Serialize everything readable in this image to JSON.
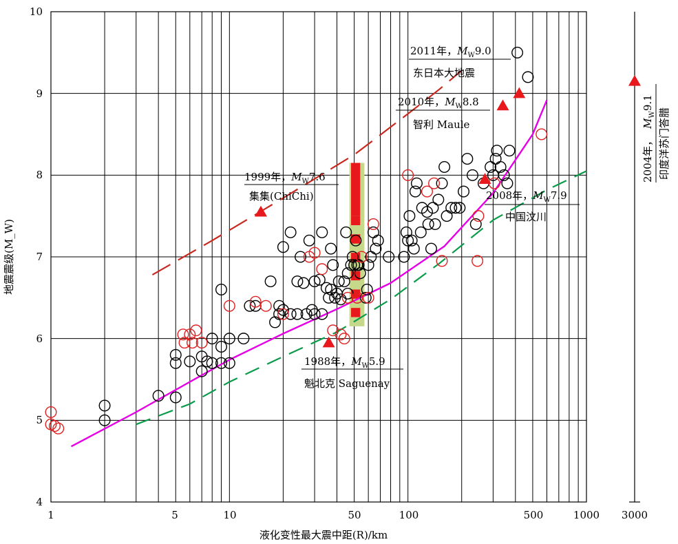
{
  "chart_data": {
    "type": "scatter",
    "xscale": "log",
    "xlim": [
      1,
      1000
    ],
    "ylim": [
      4,
      10
    ],
    "xlabel": "液化变性最大震中距(R)/km",
    "ylabel": "地震震级(M_W)",
    "x_ticks": [
      "1",
      "5",
      "10",
      "50",
      "100",
      "500",
      "1000"
    ],
    "y_ticks": [
      "4",
      "5",
      "6",
      "7",
      "8",
      "9",
      "10"
    ],
    "colors": {
      "black_points": "#000000",
      "red_points": "#e02020",
      "triangles": "#e8191c",
      "magenta_curve": "#e600e6",
      "green_dash": "#0a9b4a",
      "red_dash": "#c8281e",
      "band_fill": "#c6d98b",
      "band_red": "#e8191c"
    },
    "black_points": [
      [
        2,
        5.0
      ],
      [
        2,
        5.18
      ],
      [
        4,
        5.3
      ],
      [
        5,
        5.28
      ],
      [
        5,
        5.7
      ],
      [
        5,
        5.8
      ],
      [
        6,
        5.72
      ],
      [
        7,
        5.6
      ],
      [
        7,
        5.78
      ],
      [
        7.5,
        5.72
      ],
      [
        8,
        5.7
      ],
      [
        8,
        6.0
      ],
      [
        9,
        5.9
      ],
      [
        9,
        5.7
      ],
      [
        9,
        6.6
      ],
      [
        10,
        5.7
      ],
      [
        10,
        6.0
      ],
      [
        12,
        6.0
      ],
      [
        13,
        6.4
      ],
      [
        14,
        6.4
      ],
      [
        17,
        6.7
      ],
      [
        18,
        6.2
      ],
      [
        19,
        6.3
      ],
      [
        19,
        6.4
      ],
      [
        20,
        6.35
      ],
      [
        20,
        7.12
      ],
      [
        22,
        6.3
      ],
      [
        22,
        7.3
      ],
      [
        24,
        6.3
      ],
      [
        24,
        6.7
      ],
      [
        25,
        7.0
      ],
      [
        26,
        6.68
      ],
      [
        27,
        6.3
      ],
      [
        28,
        7.2
      ],
      [
        29,
        6.35
      ],
      [
        30,
        6.7
      ],
      [
        30,
        6.3
      ],
      [
        32,
        6.72
      ],
      [
        33,
        6.3
      ],
      [
        33,
        7.3
      ],
      [
        35,
        6.62
      ],
      [
        36,
        6.5
      ],
      [
        37,
        6.6
      ],
      [
        37,
        7.1
      ],
      [
        38,
        6.9
      ],
      [
        39,
        6.5
      ],
      [
        40,
        6.55
      ],
      [
        41,
        6.7
      ],
      [
        42,
        6.48
      ],
      [
        44,
        6.7
      ],
      [
        46,
        6.55
      ],
      [
        45,
        7.3
      ],
      [
        46,
        6.8
      ],
      [
        48,
        6.9
      ],
      [
        49,
        7.0
      ],
      [
        50,
        6.9
      ],
      [
        51,
        7.2
      ],
      [
        52,
        6.9
      ],
      [
        53,
        6.9
      ],
      [
        54,
        6.8
      ],
      [
        58,
        6.5
      ],
      [
        59,
        6.6
      ],
      [
        60,
        6.9
      ],
      [
        62,
        7.0
      ],
      [
        64,
        7.3
      ],
      [
        66,
        7.1
      ],
      [
        68,
        7.2
      ],
      [
        78,
        7.0
      ],
      [
        95,
        7.0
      ],
      [
        98,
        7.3
      ],
      [
        100,
        7.2
      ],
      [
        102,
        7.5
      ],
      [
        105,
        7.2
      ],
      [
        108,
        7.1
      ],
      [
        110,
        7.8
      ],
      [
        112,
        7.9
      ],
      [
        118,
        7.3
      ],
      [
        120,
        7.6
      ],
      [
        128,
        7.55
      ],
      [
        130,
        7.4
      ],
      [
        135,
        7.1
      ],
      [
        138,
        7.6
      ],
      [
        142,
        7.4
      ],
      [
        148,
        7.7
      ],
      [
        155,
        7.9
      ],
      [
        160,
        8.1
      ],
      [
        165,
        7.5
      ],
      [
        175,
        7.6
      ],
      [
        185,
        7.6
      ],
      [
        195,
        7.6
      ],
      [
        205,
        7.8
      ],
      [
        215,
        8.2
      ],
      [
        230,
        8.0
      ],
      [
        240,
        7.4
      ],
      [
        265,
        7.9
      ],
      [
        290,
        8.1
      ],
      [
        300,
        8.0
      ],
      [
        310,
        8.2
      ],
      [
        315,
        8.3
      ],
      [
        330,
        8.1
      ],
      [
        345,
        8.0
      ],
      [
        360,
        7.9
      ],
      [
        370,
        8.3
      ],
      [
        410,
        9.5
      ],
      [
        470,
        9.2
      ]
    ],
    "red_points": [
      [
        1,
        5.1
      ],
      [
        1,
        4.95
      ],
      [
        1.05,
        4.93
      ],
      [
        1.1,
        4.9
      ],
      [
        5.5,
        6.05
      ],
      [
        5.6,
        5.95
      ],
      [
        6,
        6.05
      ],
      [
        6.2,
        5.95
      ],
      [
        6.5,
        6.1
      ],
      [
        7,
        5.95
      ],
      [
        10,
        6.4
      ],
      [
        14,
        6.45
      ],
      [
        16,
        6.4
      ],
      [
        20,
        6.3
      ],
      [
        28,
        7.0
      ],
      [
        30,
        7.05
      ],
      [
        33,
        6.85
      ],
      [
        38,
        6.1
      ],
      [
        42,
        6.05
      ],
      [
        44,
        6.0
      ],
      [
        46,
        6.5
      ],
      [
        52,
        6.5
      ],
      [
        55,
        7.0
      ],
      [
        60,
        6.5
      ],
      [
        64,
        7.4
      ],
      [
        100,
        8.0
      ],
      [
        128,
        7.8
      ],
      [
        140,
        7.9
      ],
      [
        155,
        6.95
      ],
      [
        245,
        6.95
      ],
      [
        248,
        7.5
      ],
      [
        305,
        7.9
      ],
      [
        560,
        8.5
      ]
    ],
    "triangles": [
      {
        "x": 15,
        "y": 7.55
      },
      {
        "x": 36,
        "y": 5.95
      },
      {
        "x": 270,
        "y": 7.95
      },
      {
        "x": 340,
        "y": 8.85
      },
      {
        "x": 420,
        "y": 9.0
      },
      {
        "x": 3000,
        "y": 9.15
      }
    ],
    "magenta_curve": [
      [
        1.3,
        4.68
      ],
      [
        3,
        5.1
      ],
      [
        6,
        5.47
      ],
      [
        10,
        5.74
      ],
      [
        20,
        6.06
      ],
      [
        40,
        6.36
      ],
      [
        80,
        6.68
      ],
      [
        160,
        7.13
      ],
      [
        300,
        7.78
      ],
      [
        500,
        8.5
      ],
      [
        600,
        8.92
      ]
    ],
    "green_dash": [
      [
        3,
        4.95
      ],
      [
        6,
        5.2
      ],
      [
        10,
        5.47
      ],
      [
        20,
        5.78
      ],
      [
        40,
        6.08
      ],
      [
        80,
        6.48
      ],
      [
        150,
        6.92
      ],
      [
        300,
        7.45
      ],
      [
        600,
        7.82
      ],
      [
        1000,
        8.05
      ]
    ],
    "red_dash": [
      [
        3.7,
        6.78
      ],
      [
        8,
        7.2
      ],
      [
        20,
        7.72
      ],
      [
        50,
        8.25
      ],
      [
        100,
        8.75
      ],
      [
        150,
        9.05
      ],
      [
        200,
        9.28
      ]
    ],
    "band": {
      "x_from": 47,
      "x_to": 57,
      "y_from": 6.15,
      "y_to": 8.15,
      "red_x_from": 48,
      "red_x_to": 54,
      "red_y_split": 7.5
    },
    "annotations": [
      {
        "year": "1999年，",
        "mag_label": "M",
        "mag_sub": "W",
        "mag_value": "7.6",
        "place": "集集(ChiChi)"
      },
      {
        "year": "1988年，",
        "mag_label": "M",
        "mag_sub": "W",
        "mag_value": "5.9",
        "place": "魁北克 Saguenay"
      },
      {
        "year": "2011年，",
        "mag_label": "M",
        "mag_sub": "W",
        "mag_value": "9.0",
        "place": "东日本大地震"
      },
      {
        "year": "2010年，",
        "mag_label": "M",
        "mag_sub": "W",
        "mag_value": "8.8",
        "place": "智利 Maule"
      },
      {
        "year": "2008年，",
        "mag_label": "M",
        "mag_sub": "W",
        "mag_value": "7.9",
        "place": "中国汶川"
      },
      {
        "year": "2004年，",
        "mag_label": "M",
        "mag_sub": "W",
        "mag_value": "9.1",
        "place": "印度洋苏门答腊"
      }
    ]
  }
}
